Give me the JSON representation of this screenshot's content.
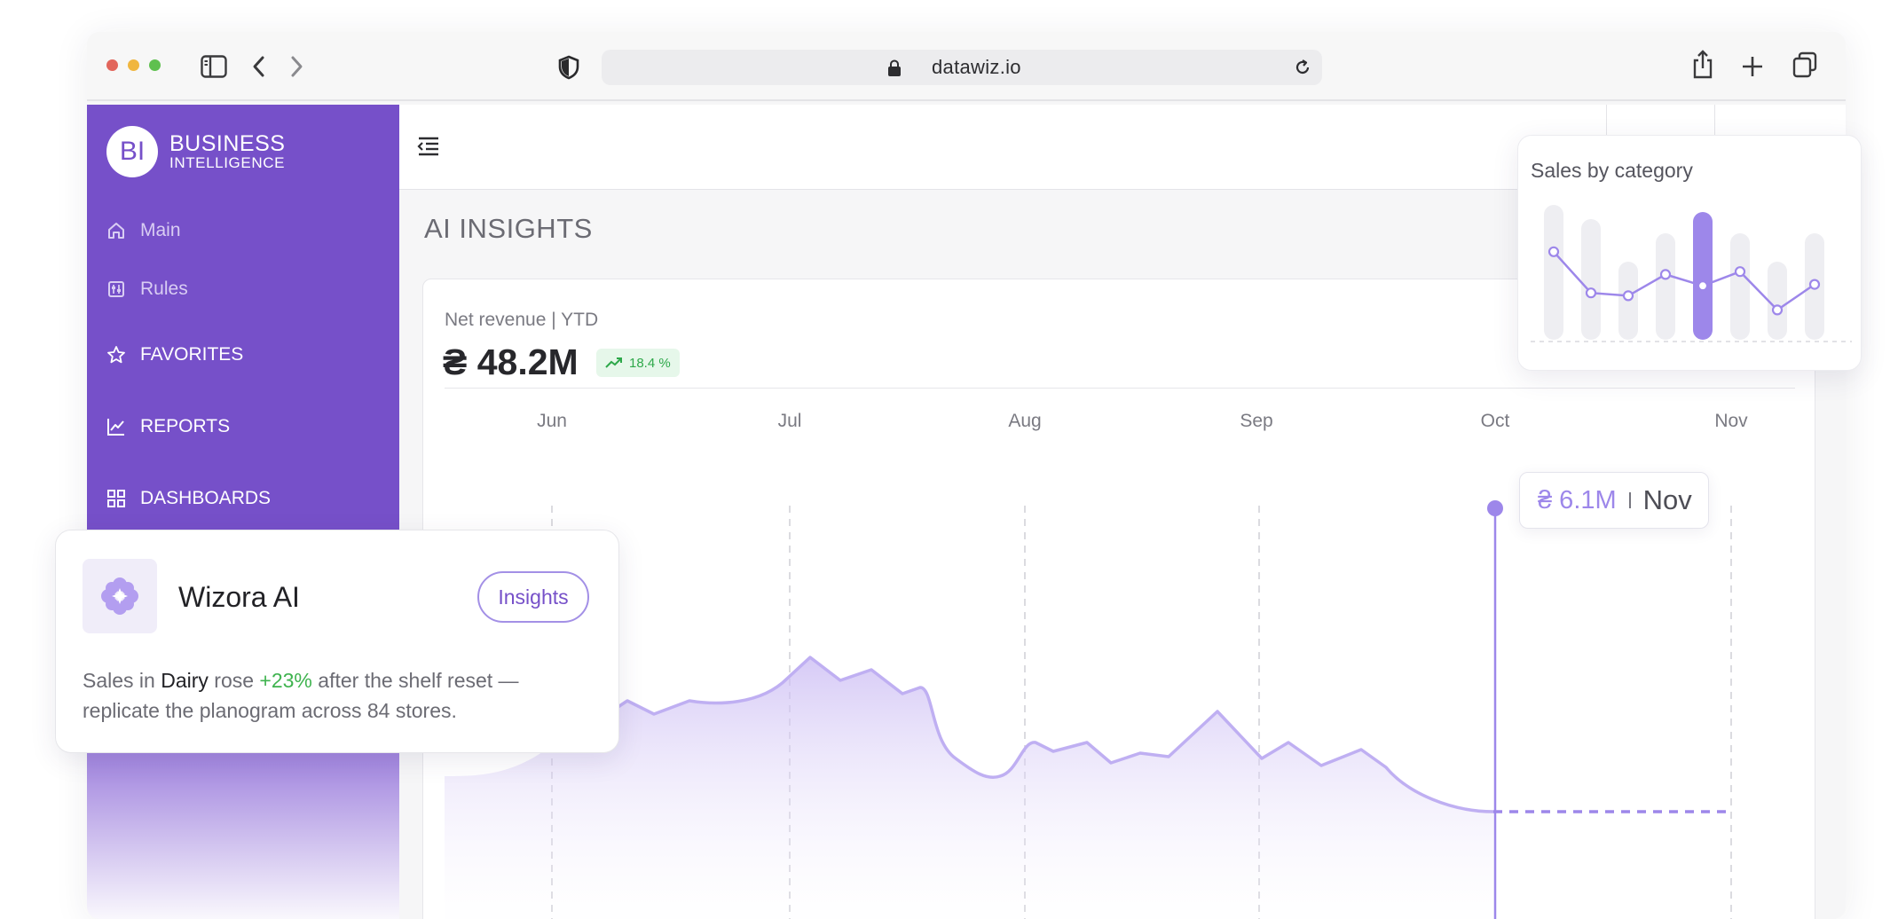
{
  "browser": {
    "url": "datawiz.io",
    "colors": {
      "close": "#e2665c",
      "minimize": "#f0b63f",
      "zoom": "#5fc04f"
    }
  },
  "brand": {
    "logo_text": "BI",
    "line1": "BUSINESS",
    "line2": "INTELLIGENCE",
    "color": "#7650c9"
  },
  "sidebar": {
    "items": [
      {
        "label": "Main",
        "icon": "home-icon"
      },
      {
        "label": "Rules",
        "icon": "rules-icon"
      },
      {
        "label": "FAVORITES",
        "icon": "star-icon"
      },
      {
        "label": "REPORTS",
        "icon": "line-chart-icon"
      },
      {
        "label": "DASHBOARDS",
        "icon": "grid-icon"
      }
    ]
  },
  "page": {
    "title": "AI INSIGHTS"
  },
  "revenue": {
    "label": "Net revenue | YTD",
    "value": "₴ 48.2M",
    "change": "18.4 %",
    "change_color": "#2ea84a"
  },
  "chart_data": {
    "type": "area",
    "x_ticks": [
      "Jun",
      "Jul",
      "Aug",
      "Sep",
      "Oct",
      "Nov"
    ],
    "tooltip": {
      "value": "₴ 6.1M",
      "month": "Nov"
    },
    "accent": "#9d87ea"
  },
  "category_chart": {
    "title": "Sales by category",
    "type": "bar",
    "values": [
      0.95,
      0.85,
      0.55,
      0.75,
      0.9,
      0.75,
      0.55,
      0.75
    ],
    "line": [
      0.62,
      0.33,
      0.31,
      0.46,
      0.38,
      0.48,
      0.21,
      0.39
    ],
    "highlight_index": 4
  },
  "ai": {
    "title": "Wizora AI",
    "button": "Insights",
    "text_before": "Sales in ",
    "category": "Dairy",
    "text_mid": " rose ",
    "change": "+23%",
    "text_after": " after the shelf reset — replicate the planogram across 84 stores."
  }
}
